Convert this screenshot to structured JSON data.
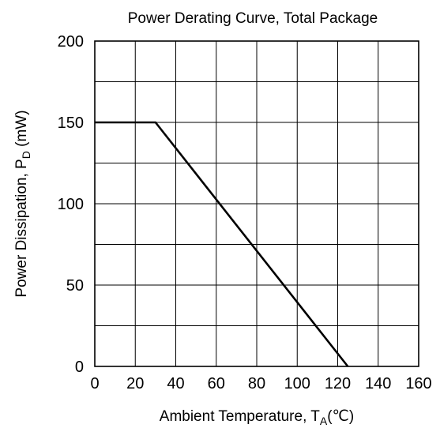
{
  "chart_data": {
    "type": "line",
    "title": "Power Derating Curve, Total Package",
    "xlabel": {
      "main": "Ambient Temperature, T",
      "sub": "A",
      "unit": "(℃)"
    },
    "ylabel": {
      "main": "Power Dissipation, P",
      "sub": "D",
      "unit": " (mW)"
    },
    "xlim": [
      0,
      160
    ],
    "ylim": [
      0,
      200
    ],
    "x_ticks": [
      0,
      20,
      40,
      60,
      80,
      100,
      120,
      140,
      160
    ],
    "y_ticks": [
      0,
      50,
      100,
      150,
      200
    ],
    "x_tick_labels": [
      "0",
      "20",
      "40",
      "60",
      "80",
      "100",
      "120",
      "140",
      "160"
    ],
    "y_tick_labels": [
      "0",
      "50",
      "100",
      "150",
      "200"
    ],
    "grid": true,
    "grid_x_step": 20,
    "grid_y_step": 25,
    "series": [
      {
        "color": "#000000",
        "x": [
          0,
          30,
          125
        ],
        "y": [
          150,
          150,
          0
        ]
      }
    ]
  }
}
